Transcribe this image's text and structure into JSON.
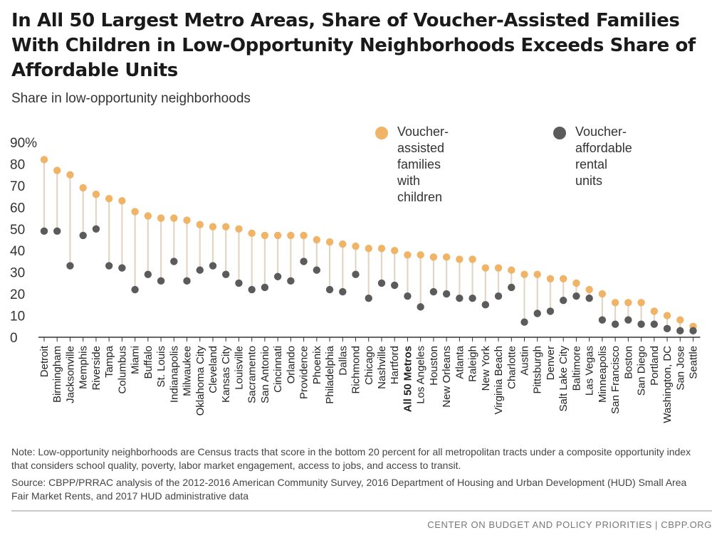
{
  "title": "In All 50 Largest Metro Areas, Share of Voucher-Assisted Families With Children in Low-Opportunity Neighborhoods Exceeds Share of Affordable Units",
  "subtitle": "Share in low-opportunity neighborhoods",
  "legend": {
    "series1_line1": "Voucher-assisted",
    "series1_line2": "families with children",
    "series2_line1": "Voucher-affordable",
    "series2_line2": "rental units"
  },
  "note": "Note: Low-opportunity neighborhoods are Census tracts that score in the bottom 20 percent for all metropolitan tracts under a composite opportunity index that considers school quality, poverty, labor market engagement, access to jobs, and access to transit.",
  "source": "Source: CBPP/PRRAC analysis of the 2012-2016 American Community Survey, 2016 Department of Housing and Urban Development (HUD) Small Area Fair Market Rents, and 2017 HUD administrative data",
  "footer": "CENTER ON BUDGET AND POLICY PRIORITIES | CBPP.ORG",
  "colors": {
    "families": "#f0b466",
    "units": "#5b5b5b",
    "stem": "#e3d6c6",
    "axis": "#333333"
  },
  "chart_data": {
    "type": "dot-range",
    "ylim": [
      0,
      90
    ],
    "yticks": [
      0,
      10,
      20,
      30,
      40,
      50,
      60,
      70,
      80,
      90
    ],
    "ytick_labels": [
      "0",
      "10",
      "20",
      "30",
      "40",
      "50",
      "60",
      "70",
      "80",
      "90%"
    ],
    "highlight_category": "All 50 Metros",
    "categories": [
      "Detroit",
      "Birmingham",
      "Jacksonville",
      "Memphis",
      "Riverside",
      "Tampa",
      "Columbus",
      "Miami",
      "Buffalo",
      "St. Louis",
      "Indianapolis",
      "Milwaukee",
      "Oklahoma City",
      "Cleveland",
      "Kansas City",
      "Louisville",
      "Sacramento",
      "San Antonio",
      "Cincinnati",
      "Orlando",
      "Providence",
      "Phoenix",
      "Philadelphia",
      "Dallas",
      "Richmond",
      "Chicago",
      "Nashville",
      "Hartford",
      "All 50 Metros",
      "Los Angeles",
      "Houston",
      "New Orleans",
      "Atlanta",
      "Raleigh",
      "New York",
      "Virginia Beach",
      "Charlotte",
      "Austin",
      "Pittsburgh",
      "Denver",
      "Salt Lake City",
      "Baltimore",
      "Las Vegas",
      "Minneapolis",
      "San Francisco",
      "Boston",
      "San Diego",
      "Portland",
      "Washington, DC",
      "San Jose",
      "Seattle"
    ],
    "series": [
      {
        "name": "Voucher-assisted families with children",
        "values": [
          82,
          77,
          75,
          69,
          66,
          64,
          63,
          58,
          56,
          55,
          55,
          54,
          52,
          51,
          51,
          50,
          48,
          47,
          47,
          47,
          47,
          45,
          44,
          43,
          42,
          41,
          41,
          40,
          38,
          38,
          37,
          37,
          36,
          36,
          32,
          32,
          31,
          29,
          29,
          27,
          27,
          25,
          22,
          20,
          16,
          16,
          16,
          12,
          10,
          8,
          5
        ]
      },
      {
        "name": "Voucher-affordable rental units",
        "values": [
          49,
          49,
          33,
          47,
          50,
          33,
          32,
          22,
          29,
          26,
          35,
          26,
          31,
          33,
          29,
          25,
          22,
          23,
          28,
          26,
          35,
          31,
          22,
          21,
          29,
          18,
          25,
          24,
          19,
          14,
          21,
          20,
          18,
          18,
          15,
          19,
          23,
          7,
          11,
          12,
          17,
          19,
          18,
          8,
          6,
          8,
          6,
          6,
          4,
          3,
          3
        ]
      }
    ]
  }
}
